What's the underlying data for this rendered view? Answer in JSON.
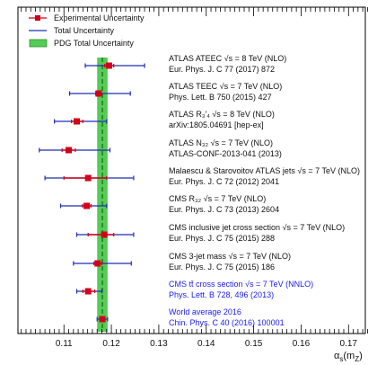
{
  "chart_data": {
    "type": "scatter",
    "title": "",
    "xlabel": "αs(mZ)",
    "ylabel": "",
    "xlim": [
      0.1,
      0.175
    ],
    "xticks": [
      "0.11",
      "0.12",
      "0.13",
      "0.14",
      "0.15",
      "0.16",
      "0.17"
    ],
    "grid": false,
    "legend_position": "top-left",
    "legend": {
      "exp": "Experimental Uncertainty",
      "total": "Total Uncertainty",
      "pdg": "PDG Total Uncertainty"
    },
    "pdg_band": {
      "center": 0.1181,
      "low": 0.117,
      "high": 0.1192
    },
    "colors": {
      "marker": "#d0021b",
      "total": "#1f2db5",
      "band": "#55cc55",
      "blue_text": "#1a1aff"
    },
    "measurements": [
      {
        "label": "ATLAS ATEEC √s = 8 TeV (NLO)",
        "ref": "Eur. Phys. J. C 77 (2017) 872",
        "value": 0.1195,
        "exp_low": 0.1186,
        "exp_high": 0.1205,
        "tot_low": 0.1145,
        "tot_high": 0.127,
        "blue": false
      },
      {
        "label": "ATLAS TEEC √s = 7 TeV (NLO)",
        "ref": "Phys. Lett. B 750 (2015) 427",
        "value": 0.1173,
        "exp_low": 0.1167,
        "exp_high": 0.1179,
        "tot_low": 0.1112,
        "tot_high": 0.124,
        "blue": false
      },
      {
        "label": "ATLAS R₃′₄ √s = 8 TeV (NLO)",
        "ref": "arXiv:1805.04691 [hep-ex]",
        "value": 0.1127,
        "exp_low": 0.1116,
        "exp_high": 0.114,
        "tot_low": 0.108,
        "tot_high": 0.119,
        "blue": false
      },
      {
        "label": "ATLAS N₃₂ √s = 7 TeV (NLO)",
        "ref": "ATLAS-CONF-2013-041 (2013)",
        "value": 0.111,
        "exp_low": 0.1096,
        "exp_high": 0.1124,
        "tot_low": 0.1048,
        "tot_high": 0.1197,
        "blue": false
      },
      {
        "label": "Malaescu & Starovoitov ATLAS jets √s = 7 TeV (NLO)",
        "ref": "Eur. Phys. J. C 72 (2012) 2041",
        "value": 0.1151,
        "exp_low": 0.11,
        "exp_high": 0.119,
        "tot_low": 0.106,
        "tot_high": 0.1247,
        "blue": false
      },
      {
        "label": "CMS R₃₂ √s = 7 TeV (NLO)",
        "ref": "Eur. Phys. J. C 73 (2013) 2604",
        "value": 0.1148,
        "exp_low": 0.1139,
        "exp_high": 0.1157,
        "tot_low": 0.1093,
        "tot_high": 0.119,
        "blue": false
      },
      {
        "label": "CMS inclusive jet cross section √s = 7 TeV (NLO)",
        "ref": "Eur. Phys. J. C 75 (2015) 288",
        "value": 0.1185,
        "exp_low": 0.1151,
        "exp_high": 0.1205,
        "tot_low": 0.1127,
        "tot_high": 0.1247,
        "blue": false
      },
      {
        "label": "CMS 3-jet mass √s = 7 TeV (NLO)",
        "ref": "Eur. Phys. J. C 75 (2015) 186",
        "value": 0.1171,
        "exp_low": 0.1163,
        "exp_high": 0.118,
        "tot_low": 0.112,
        "tot_high": 0.1242,
        "blue": false
      },
      {
        "label": "CMS tt̄ cross section √s = 7 TeV (NNLO)",
        "ref": "Phys. Lett. B 728, 496 (2013)",
        "value": 0.1151,
        "exp_low": 0.114,
        "exp_high": 0.1165,
        "tot_low": 0.1127,
        "tot_high": 0.118,
        "blue": true
      },
      {
        "label": "World average 2016",
        "ref": "Chin. Phys. C 40 (2016) 100001",
        "value": 0.1181,
        "exp_low": 0.1179,
        "exp_high": 0.1183,
        "tot_low": 0.117,
        "tot_high": 0.1192,
        "blue": true
      }
    ]
  }
}
